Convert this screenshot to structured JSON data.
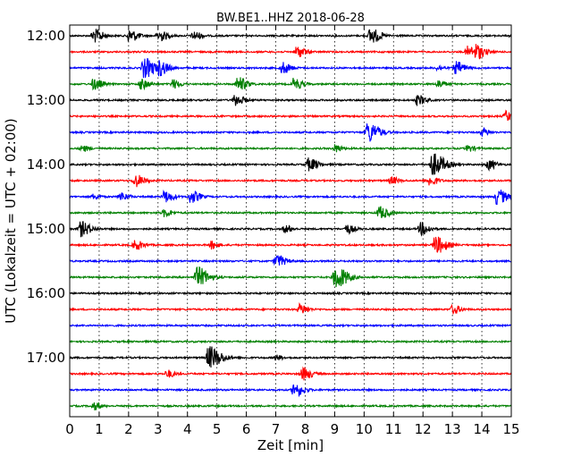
{
  "chart_data": {
    "type": "line",
    "title": "BW.BE1..HHZ 2018-06-28",
    "xlabel": "Zeit  [min]",
    "ylabel": "UTC (Lokalzeit = UTC + 02:00)",
    "xlim": [
      0,
      15
    ],
    "x_ticks": [
      "0",
      "1",
      "2",
      "3",
      "4",
      "5",
      "6",
      "7",
      "8",
      "9",
      "10",
      "11",
      "12",
      "13",
      "14",
      "15"
    ],
    "y_ticks": [
      "12:00",
      "13:00",
      "14:00",
      "15:00",
      "16:00",
      "17:00"
    ],
    "grid": "vertical dotted",
    "trace_colors": [
      "#000000",
      "#ff0000",
      "#0000ff",
      "#008000"
    ],
    "traces": [
      {
        "start": "12:00",
        "events": [
          [
            0.8,
            0.55
          ],
          [
            2.0,
            0.5
          ],
          [
            3.0,
            0.45
          ],
          [
            4.2,
            0.35
          ],
          [
            10.2,
            0.6
          ],
          [
            15.0,
            0.5
          ]
        ]
      },
      {
        "start": "12:15",
        "events": [
          [
            7.7,
            0.45
          ],
          [
            13.5,
            0.45
          ],
          [
            13.8,
            0.5
          ]
        ]
      },
      {
        "start": "12:30",
        "events": [
          [
            2.5,
            0.8
          ],
          [
            3.05,
            0.5
          ],
          [
            7.2,
            0.45
          ],
          [
            13.1,
            0.5
          ],
          [
            12.5,
            0.2
          ]
        ]
      },
      {
        "start": "12:45",
        "events": [
          [
            0.8,
            0.45
          ],
          [
            2.4,
            0.4
          ],
          [
            3.5,
            0.35
          ],
          [
            5.7,
            0.55
          ],
          [
            7.6,
            0.45
          ],
          [
            12.5,
            0.3
          ]
        ]
      },
      {
        "start": "13:00",
        "events": [
          [
            5.6,
            0.45
          ],
          [
            11.8,
            0.4
          ]
        ]
      },
      {
        "start": "13:15",
        "events": [
          [
            14.8,
            0.4
          ]
        ]
      },
      {
        "start": "13:30",
        "events": [
          [
            10.1,
            0.8
          ],
          [
            14.0,
            0.3
          ]
        ]
      },
      {
        "start": "13:45",
        "events": [
          [
            0.4,
            0.25
          ],
          [
            9.0,
            0.3
          ],
          [
            13.5,
            0.25
          ]
        ]
      },
      {
        "start": "14:00",
        "events": [
          [
            8.1,
            0.5
          ],
          [
            12.3,
            0.9
          ],
          [
            14.2,
            0.4
          ]
        ]
      },
      {
        "start": "14:15",
        "events": [
          [
            2.2,
            0.5
          ],
          [
            10.9,
            0.3
          ],
          [
            12.2,
            0.4
          ]
        ]
      },
      {
        "start": "14:30",
        "events": [
          [
            0.8,
            0.2
          ],
          [
            1.7,
            0.35
          ],
          [
            3.2,
            0.45
          ],
          [
            4.1,
            0.5
          ],
          [
            14.5,
            0.6
          ]
        ]
      },
      {
        "start": "14:45",
        "events": [
          [
            3.2,
            0.3
          ],
          [
            10.5,
            0.5
          ]
        ]
      },
      {
        "start": "15:00",
        "events": [
          [
            0.35,
            0.6
          ],
          [
            7.3,
            0.3
          ],
          [
            9.4,
            0.35
          ],
          [
            11.9,
            0.5
          ]
        ]
      },
      {
        "start": "15:15",
        "events": [
          [
            2.2,
            0.4
          ],
          [
            4.8,
            0.3
          ],
          [
            12.4,
            0.7
          ]
        ]
      },
      {
        "start": "15:30",
        "events": [
          [
            7.0,
            0.5
          ]
        ]
      },
      {
        "start": "15:45",
        "events": [
          [
            4.3,
            0.8
          ],
          [
            9.0,
            0.9
          ]
        ]
      },
      {
        "start": "16:00",
        "events": []
      },
      {
        "start": "16:15",
        "events": [
          [
            7.8,
            0.4
          ],
          [
            13.0,
            0.35
          ]
        ]
      },
      {
        "start": "16:30",
        "events": []
      },
      {
        "start": "16:45",
        "events": []
      },
      {
        "start": "17:00",
        "events": [
          [
            4.7,
            0.9
          ],
          [
            7.0,
            0.2
          ]
        ]
      },
      {
        "start": "17:15",
        "events": [
          [
            3.3,
            0.3
          ],
          [
            7.9,
            0.5
          ]
        ]
      },
      {
        "start": "17:30",
        "events": [
          [
            7.6,
            0.55
          ]
        ]
      },
      {
        "start": "17:45",
        "events": [
          [
            0.8,
            0.3
          ]
        ]
      }
    ]
  }
}
